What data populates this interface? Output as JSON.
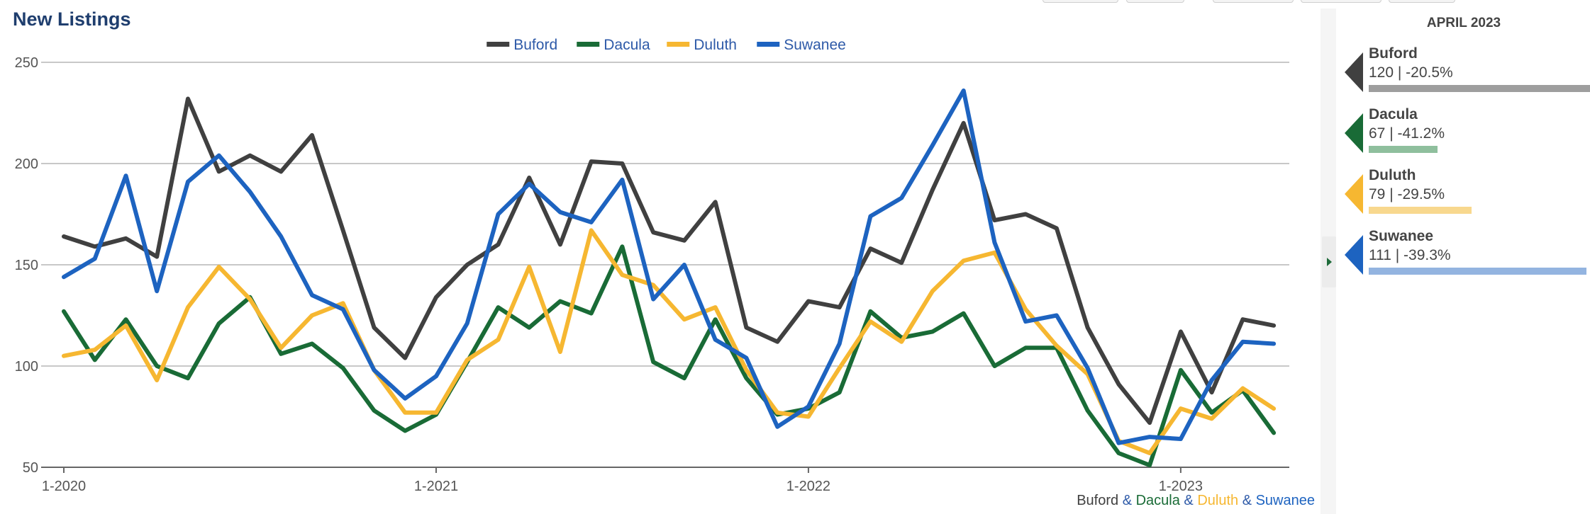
{
  "title": "New Listings",
  "colors": {
    "buford": "#404040",
    "dacula": "#196b36",
    "duluth": "#f6b731",
    "suwanee": "#1d63c0",
    "connector": "#2e5aa8"
  },
  "footer": {
    "s1": "Buford",
    "amp1": " & ",
    "s2": "Dacula",
    "amp2": " & ",
    "s3": "Duluth",
    "amp3": " & ",
    "s4": "Suwanee"
  },
  "side_panel": {
    "header": "APRIL 2023",
    "items": [
      {
        "name": "Buford",
        "value_text": "120 | -20.5%",
        "bar_fraction": 1.0,
        "color": "#9e9e9e",
        "marker_color": "#404040"
      },
      {
        "name": "Dacula",
        "value_text": "67 | -41.2%",
        "bar_fraction": 0.28,
        "color": "#8fbf9d",
        "marker_color": "#196b36"
      },
      {
        "name": "Duluth",
        "value_text": "79 | -29.5%",
        "bar_fraction": 0.42,
        "color": "#f8d88e",
        "marker_color": "#f6b731"
      },
      {
        "name": "Suwanee",
        "value_text": "111 | -39.3%",
        "bar_fraction": 0.89,
        "color": "#93b4e0",
        "marker_color": "#1d63c0"
      }
    ]
  },
  "chart_data": {
    "type": "line",
    "title": "New Listings",
    "xlabel": "",
    "ylabel": "",
    "ylim": [
      50,
      250
    ],
    "yticks": [
      50,
      100,
      150,
      200,
      250
    ],
    "xtick_labels": [
      "1-2020",
      "1-2021",
      "1-2022",
      "1-2023"
    ],
    "x": [
      "1-2020",
      "2-2020",
      "3-2020",
      "4-2020",
      "5-2020",
      "6-2020",
      "7-2020",
      "8-2020",
      "9-2020",
      "10-2020",
      "11-2020",
      "12-2020",
      "1-2021",
      "2-2021",
      "3-2021",
      "4-2021",
      "5-2021",
      "6-2021",
      "7-2021",
      "8-2021",
      "9-2021",
      "10-2021",
      "11-2021",
      "12-2021",
      "1-2022",
      "2-2022",
      "3-2022",
      "4-2022",
      "5-2022",
      "6-2022",
      "7-2022",
      "8-2022",
      "9-2022",
      "10-2022",
      "11-2022",
      "12-2022",
      "1-2023",
      "2-2023",
      "3-2023",
      "4-2023"
    ],
    "grid": true,
    "legend_position": "top",
    "series": [
      {
        "name": "Buford",
        "color": "#404040",
        "values": [
          164,
          159,
          163,
          154,
          232,
          196,
          204,
          196,
          214,
          167,
          119,
          104,
          134,
          150,
          160,
          193,
          160,
          201,
          200,
          166,
          162,
          181,
          119,
          112,
          132,
          129,
          158,
          151,
          187,
          220,
          172,
          175,
          168,
          119,
          91,
          72,
          117,
          87,
          123,
          120
        ]
      },
      {
        "name": "Dacula",
        "color": "#196b36",
        "values": [
          127,
          103,
          123,
          100,
          94,
          121,
          134,
          106,
          111,
          99,
          78,
          68,
          76,
          102,
          129,
          119,
          132,
          126,
          159,
          102,
          94,
          123,
          94,
          76,
          79,
          87,
          127,
          114,
          117,
          126,
          100,
          109,
          109,
          78,
          57,
          51,
          98,
          77,
          88,
          67
        ]
      },
      {
        "name": "Duluth",
        "color": "#f6b731",
        "values": [
          105,
          108,
          120,
          93,
          129,
          149,
          133,
          109,
          125,
          131,
          98,
          77,
          77,
          103,
          113,
          149,
          107,
          167,
          145,
          140,
          123,
          129,
          98,
          77,
          75,
          99,
          122,
          112,
          137,
          152,
          156,
          128,
          110,
          96,
          63,
          57,
          79,
          74,
          89,
          79
        ]
      },
      {
        "name": "Suwanee",
        "color": "#1d63c0",
        "values": [
          144,
          153,
          194,
          137,
          191,
          204,
          186,
          164,
          135,
          128,
          98,
          84,
          95,
          121,
          175,
          190,
          176,
          171,
          192,
          133,
          150,
          113,
          104,
          70,
          80,
          111,
          174,
          183,
          209,
          236,
          161,
          122,
          125,
          99,
          62,
          65,
          64,
          93,
          112,
          111
        ]
      }
    ]
  }
}
